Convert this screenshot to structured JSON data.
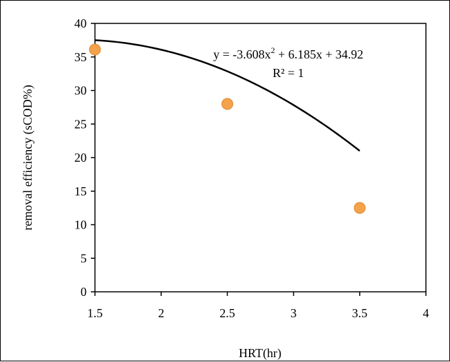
{
  "chart_data": {
    "type": "scatter",
    "xlabel": "HRT(hr)",
    "ylabel": "removal efficiency (sCOD%)",
    "xlim": [
      1.5,
      4
    ],
    "ylim": [
      0,
      40
    ],
    "xticks": [
      1.5,
      2,
      2.5,
      3,
      3.5,
      4
    ],
    "yticks": [
      0,
      5,
      10,
      15,
      20,
      25,
      30,
      35,
      40
    ],
    "xtick_labels": [
      "1.5",
      "2",
      "2.5",
      "3",
      "3.5",
      "4"
    ],
    "ytick_labels": [
      "0",
      "5",
      "10",
      "15",
      "20",
      "25",
      "30",
      "35",
      "40"
    ],
    "grid": false,
    "series": [
      {
        "x": [
          1.5,
          2.5,
          3.5
        ],
        "y": [
          36.1,
          28.0,
          12.5
        ],
        "marker_color": "#f4a24c",
        "marker_stroke": "#e0872a"
      }
    ],
    "trendline": {
      "type": "polynomial",
      "degree": 2,
      "coefficients": [
        -3.608,
        6.185,
        34.92
      ],
      "color": "#000000",
      "equation_line1_prefix": "y = -3.608x",
      "equation_line1_sup": "2",
      "equation_line1_suffix": " + 6.185x + 34.92",
      "equation_line2": "R² = 1"
    }
  }
}
